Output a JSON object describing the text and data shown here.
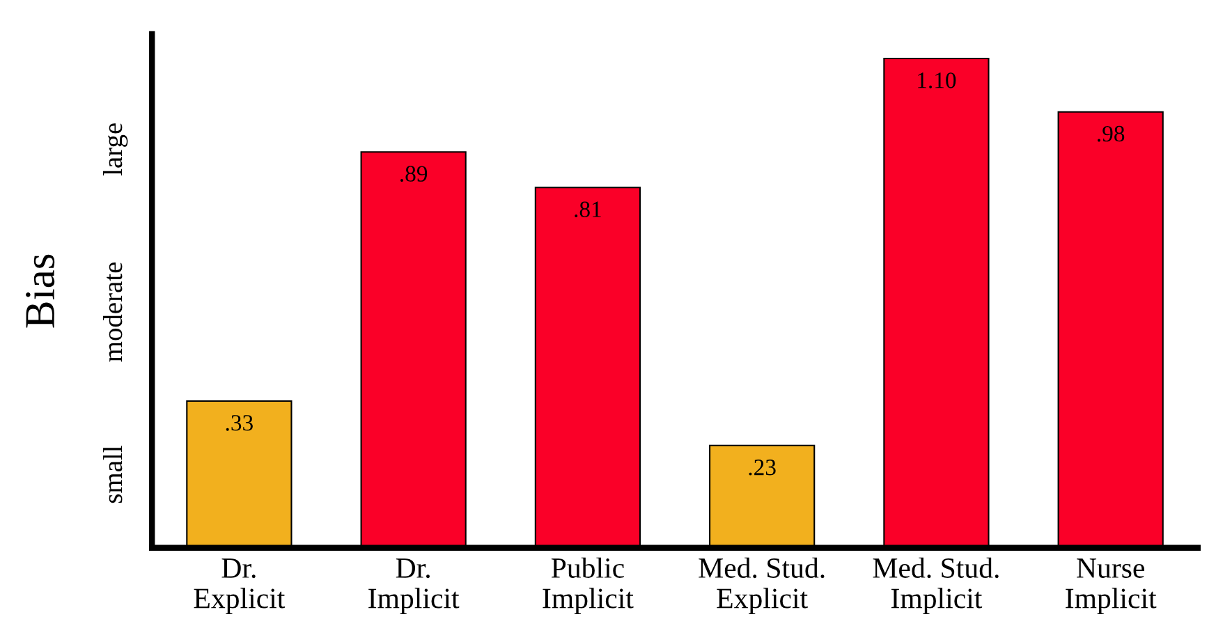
{
  "chart_data": {
    "type": "bar",
    "ylabel": "Bias",
    "categories": [
      "Dr.\nExplicit",
      "Dr.\nImplicit",
      "Public\nImplicit",
      "Med. Stud.\nExplicit",
      "Med. Stud.\nImplicit",
      "Nurse\nImplicit"
    ],
    "values": [
      0.33,
      0.89,
      0.81,
      0.23,
      1.1,
      0.98
    ],
    "value_labels": [
      ".33",
      ".89",
      ".81",
      ".23",
      "1.10",
      ".98"
    ],
    "colors": [
      "#f2b01e",
      "#fa0028",
      "#fa0028",
      "#f2b01e",
      "#fa0028",
      "#fa0028"
    ],
    "annotations": [
      "small",
      "moderate",
      "large"
    ],
    "grid": false,
    "legend": false
  }
}
